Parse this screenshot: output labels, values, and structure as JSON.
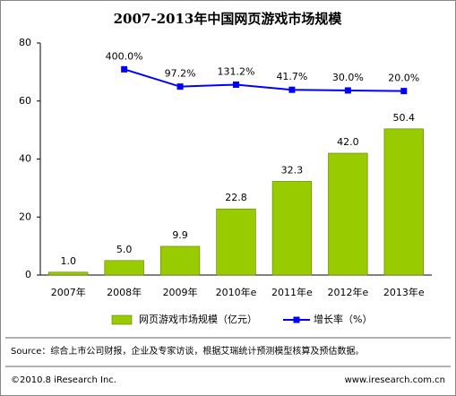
{
  "chart_data": {
    "type": "bar",
    "title": "2007-2013年中国网页游戏市场规模",
    "categories": [
      "2007年",
      "2008年",
      "2009年",
      "2010年e",
      "2011年e",
      "2012年e",
      "2013年e"
    ],
    "series": [
      {
        "name": "网页游戏市场规模（亿元）",
        "type": "bar",
        "color": "#99cc00",
        "values": [
          1.0,
          5.0,
          9.9,
          22.8,
          32.3,
          42.0,
          50.4
        ],
        "value_labels": [
          "1.0",
          "5.0",
          "9.9",
          "22.8",
          "32.3",
          "42.0",
          "50.4"
        ]
      },
      {
        "name": "增长率（%）",
        "type": "line",
        "axis": "y2",
        "color": "#0000ff",
        "values": [
          null,
          400.0,
          97.2,
          131.2,
          41.7,
          30.0,
          20.0
        ],
        "value_labels": [
          null,
          "400.0%",
          "97.2%",
          "131.2%",
          "41.7%",
          "30.0%",
          "20.0%"
        ]
      }
    ],
    "ylim": [
      0,
      80
    ],
    "yticks": [
      0,
      20,
      40,
      60,
      80
    ],
    "y2lim": [
      -3200,
      860
    ],
    "grid": false,
    "legend": "bottom",
    "source": "Source：综合上市公司财报，企业及专家访谈，根据艾瑞统计预测模型核算及预估数据。",
    "copyright": "©2010.8 iResearch Inc.",
    "website": "www.iresearch.com.cn"
  }
}
